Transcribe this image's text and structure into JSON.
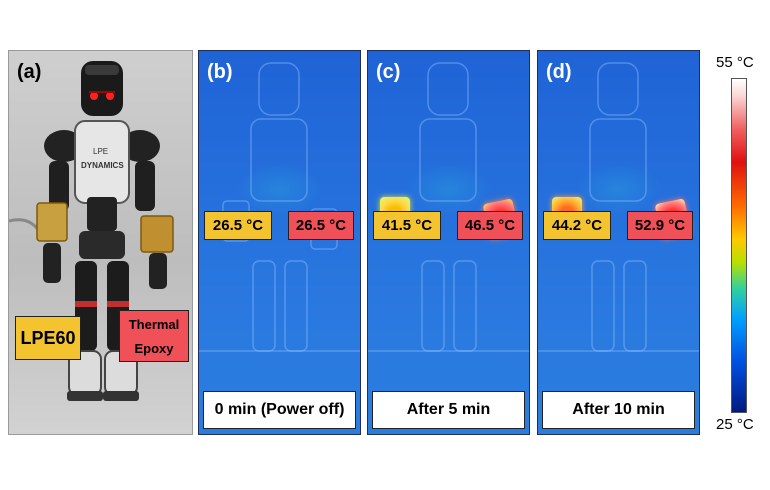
{
  "panels": {
    "a": {
      "letter": "(a)",
      "robot_text_top": "LPE",
      "robot_text_bottom": "DYNAMICS",
      "label_left": "LPE60",
      "label_right_line1": "Thermal",
      "label_right_line2": "Epoxy"
    },
    "b": {
      "letter": "(b)",
      "temp_left": "26.5 °C",
      "temp_right": "26.5 °C",
      "caption": "0 min (Power off)"
    },
    "c": {
      "letter": "(c)",
      "temp_left": "41.5 °C",
      "temp_right": "46.5 °C",
      "caption": "After 5 min"
    },
    "d": {
      "letter": "(d)",
      "temp_left": "44.2 °C",
      "temp_right": "52.9 °C",
      "caption": "After 10 min"
    }
  },
  "colorbar": {
    "max_label": "55 °C",
    "min_label": "25 °C"
  },
  "colors": {
    "yellow_label": "#f4c430",
    "red_label": "#f05058",
    "thermal_blue": "#2672dd"
  }
}
